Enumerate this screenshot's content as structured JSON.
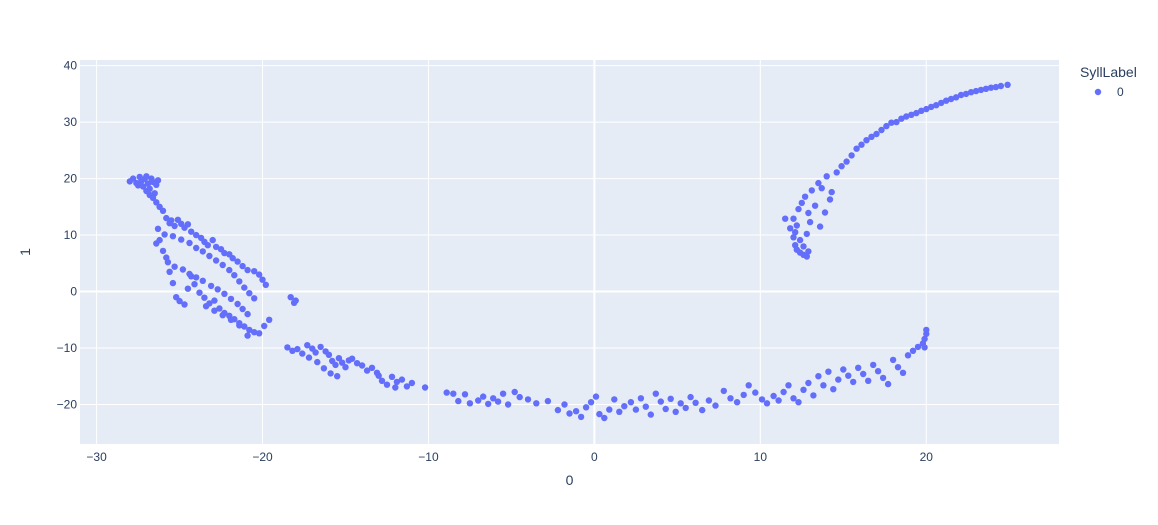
{
  "chart_data": {
    "type": "scatter",
    "xlabel": "0",
    "ylabel": "1",
    "xlim": [
      -31,
      28
    ],
    "ylim": [
      -27,
      41
    ],
    "xticks": [
      -30,
      -20,
      -10,
      0,
      10,
      20
    ],
    "yticks": [
      -20,
      -10,
      0,
      10,
      20,
      30,
      40
    ],
    "grid": true,
    "legend_position": "top-right",
    "legend_title": "SyllLabel",
    "background_color": "#e5ecf6",
    "grid_color": "#ffffff",
    "series": [
      {
        "name": "0",
        "color": "#636efa",
        "points": [
          [
            -28.0,
            19.5
          ],
          [
            -27.8,
            20.0
          ],
          [
            -27.6,
            19.2
          ],
          [
            -27.5,
            18.8
          ],
          [
            -27.4,
            20.3
          ],
          [
            -27.3,
            19.6
          ],
          [
            -27.2,
            18.6
          ],
          [
            -27.1,
            19.9
          ],
          [
            -27.0,
            20.4
          ],
          [
            -26.9,
            19.1
          ],
          [
            -26.8,
            18.2
          ],
          [
            -26.7,
            20.0
          ],
          [
            -26.6,
            19.4
          ],
          [
            -26.5,
            17.4
          ],
          [
            -26.4,
            18.9
          ],
          [
            -26.3,
            19.7
          ],
          [
            -26.8,
            17.1
          ],
          [
            -27.0,
            17.8
          ],
          [
            -26.6,
            16.6
          ],
          [
            -26.4,
            15.8
          ],
          [
            -26.2,
            15.0
          ],
          [
            -26.0,
            14.3
          ],
          [
            -26.3,
            11.1
          ],
          [
            -25.8,
            13.0
          ],
          [
            -25.6,
            12.1
          ],
          [
            -25.5,
            12.6
          ],
          [
            -25.3,
            11.6
          ],
          [
            -25.1,
            12.7
          ],
          [
            -24.9,
            12.0
          ],
          [
            -24.7,
            11.3
          ],
          [
            -24.5,
            11.9
          ],
          [
            -24.3,
            10.6
          ],
          [
            -24.0,
            10.0
          ],
          [
            -23.7,
            9.5
          ],
          [
            -23.5,
            8.8
          ],
          [
            -23.3,
            8.2
          ],
          [
            -23.0,
            9.1
          ],
          [
            -22.8,
            7.9
          ],
          [
            -22.5,
            7.5
          ],
          [
            -22.3,
            6.8
          ],
          [
            -22.0,
            6.6
          ],
          [
            -21.8,
            5.9
          ],
          [
            -21.5,
            5.3
          ],
          [
            -21.2,
            4.5
          ],
          [
            -20.9,
            3.8
          ],
          [
            -20.5,
            3.6
          ],
          [
            -20.2,
            3.0
          ],
          [
            -20.0,
            2.1
          ],
          [
            -19.8,
            1.2
          ],
          [
            -26.4,
            8.5
          ],
          [
            -26.2,
            9.1
          ],
          [
            -26.0,
            7.2
          ],
          [
            -25.8,
            6.0
          ],
          [
            -25.6,
            3.5
          ],
          [
            -25.4,
            1.5
          ],
          [
            -25.2,
            -1.0
          ],
          [
            -25.0,
            -1.7
          ],
          [
            -24.7,
            -2.3
          ],
          [
            -24.5,
            0.5
          ],
          [
            -24.3,
            2.7
          ],
          [
            -24.1,
            1.3
          ],
          [
            -23.8,
            -0.2
          ],
          [
            -23.5,
            -1.1
          ],
          [
            -23.2,
            -2.1
          ],
          [
            -22.9,
            -1.6
          ],
          [
            -22.6,
            -3.0
          ],
          [
            -22.3,
            -3.8
          ],
          [
            -22.0,
            -4.3
          ],
          [
            -21.7,
            -4.9
          ],
          [
            -21.4,
            -5.6
          ],
          [
            -21.1,
            -6.2
          ],
          [
            -20.8,
            -6.8
          ],
          [
            -20.5,
            -7.2
          ],
          [
            -20.2,
            -7.4
          ],
          [
            -19.9,
            -6.1
          ],
          [
            -19.6,
            -5.0
          ],
          [
            -25.9,
            10.1
          ],
          [
            -25.4,
            9.8
          ],
          [
            -24.9,
            9.2
          ],
          [
            -24.4,
            8.6
          ],
          [
            -24.0,
            7.7
          ],
          [
            -23.6,
            7.1
          ],
          [
            -23.2,
            6.3
          ],
          [
            -22.8,
            5.5
          ],
          [
            -22.4,
            4.7
          ],
          [
            -22.0,
            3.8
          ],
          [
            -21.7,
            2.9
          ],
          [
            -21.4,
            1.8
          ],
          [
            -21.1,
            0.7
          ],
          [
            -20.8,
            -0.3
          ],
          [
            -20.5,
            -1.2
          ],
          [
            -25.7,
            5.2
          ],
          [
            -25.3,
            4.4
          ],
          [
            -24.8,
            3.9
          ],
          [
            -24.4,
            3.1
          ],
          [
            -24.0,
            2.5
          ],
          [
            -23.6,
            1.9
          ],
          [
            -23.1,
            1.0
          ],
          [
            -22.7,
            0.4
          ],
          [
            -22.3,
            -0.4
          ],
          [
            -21.9,
            -1.3
          ],
          [
            -21.5,
            -2.2
          ],
          [
            -21.2,
            -3.1
          ],
          [
            -20.9,
            -4.0
          ],
          [
            -23.4,
            -2.6
          ],
          [
            -22.9,
            -3.4
          ],
          [
            -22.4,
            -4.2
          ],
          [
            -21.9,
            -5.0
          ],
          [
            -21.4,
            -6.0
          ],
          [
            -20.9,
            -7.8
          ],
          [
            -18.3,
            -1.0
          ],
          [
            -18.1,
            -2.0
          ],
          [
            -18.0,
            -1.6
          ],
          [
            -18.5,
            -9.9
          ],
          [
            -18.2,
            -10.5
          ],
          [
            -17.9,
            -10.2
          ],
          [
            -17.6,
            -11.0
          ],
          [
            -17.3,
            -9.5
          ],
          [
            -17.0,
            -10.1
          ],
          [
            -16.8,
            -10.8
          ],
          [
            -16.5,
            -9.8
          ],
          [
            -16.2,
            -10.6
          ],
          [
            -16.0,
            -11.2
          ],
          [
            -15.8,
            -12.3
          ],
          [
            -15.6,
            -13.0
          ],
          [
            -15.4,
            -11.8
          ],
          [
            -15.2,
            -12.6
          ],
          [
            -15.0,
            -13.4
          ],
          [
            -14.8,
            -12.2
          ],
          [
            -14.6,
            -11.9
          ],
          [
            -14.3,
            -12.7
          ],
          [
            -14.0,
            -13.1
          ],
          [
            -13.7,
            -14.0
          ],
          [
            -13.4,
            -13.5
          ],
          [
            -13.1,
            -14.4
          ],
          [
            -12.8,
            -15.8
          ],
          [
            -12.5,
            -16.5
          ],
          [
            -12.2,
            -15.1
          ],
          [
            -11.9,
            -16.0
          ],
          [
            -11.6,
            -15.6
          ],
          [
            -11.3,
            -16.8
          ],
          [
            -11.0,
            -16.2
          ],
          [
            -17.2,
            -11.7
          ],
          [
            -16.7,
            -12.5
          ],
          [
            -16.3,
            -13.6
          ],
          [
            -15.9,
            -14.5
          ],
          [
            -15.5,
            -15.0
          ],
          [
            -13.0,
            -14.9
          ],
          [
            -12.0,
            -17.0
          ],
          [
            -10.2,
            -17.0
          ],
          [
            -8.9,
            -17.9
          ],
          [
            -8.5,
            -18.1
          ],
          [
            -8.2,
            -19.4
          ],
          [
            -7.8,
            -18.2
          ],
          [
            -7.5,
            -19.8
          ],
          [
            -7.0,
            -19.3
          ],
          [
            -6.7,
            -18.6
          ],
          [
            -6.4,
            -19.9
          ],
          [
            -6.1,
            -18.9
          ],
          [
            -5.8,
            -19.5
          ],
          [
            -5.5,
            -18.1
          ],
          [
            -5.2,
            -20.0
          ],
          [
            -4.8,
            -17.8
          ],
          [
            -4.5,
            -18.7
          ],
          [
            -4.0,
            -19.1
          ],
          [
            -3.5,
            -19.8
          ],
          [
            -2.8,
            -19.4
          ],
          [
            -2.2,
            -21.0
          ],
          [
            -1.8,
            -20.0
          ],
          [
            -1.5,
            -21.6
          ],
          [
            -1.1,
            -21.2
          ],
          [
            -0.8,
            -22.2
          ],
          [
            -0.5,
            -20.5
          ],
          [
            -0.2,
            -19.6
          ],
          [
            0.1,
            -18.6
          ],
          [
            0.3,
            -21.7
          ],
          [
            0.6,
            -22.4
          ],
          [
            0.9,
            -20.9
          ],
          [
            1.2,
            -19.1
          ],
          [
            1.5,
            -21.3
          ],
          [
            1.8,
            -20.3
          ],
          [
            2.2,
            -19.6
          ],
          [
            2.5,
            -20.9
          ],
          [
            2.8,
            -18.9
          ],
          [
            3.1,
            -20.4
          ],
          [
            3.4,
            -21.8
          ],
          [
            3.7,
            -18.1
          ],
          [
            4.0,
            -19.5
          ],
          [
            4.3,
            -20.8
          ],
          [
            4.6,
            -19.0
          ],
          [
            4.9,
            -21.3
          ],
          [
            5.2,
            -19.8
          ],
          [
            5.5,
            -20.6
          ],
          [
            5.8,
            -18.7
          ],
          [
            6.1,
            -19.7
          ],
          [
            6.5,
            -21.0
          ],
          [
            6.9,
            -19.3
          ],
          [
            7.3,
            -20.2
          ],
          [
            7.8,
            -17.6
          ],
          [
            8.2,
            -18.9
          ],
          [
            8.6,
            -19.6
          ],
          [
            9.0,
            -18.3
          ],
          [
            9.3,
            -16.6
          ],
          [
            9.7,
            -17.9
          ],
          [
            10.1,
            -19.1
          ],
          [
            10.4,
            -19.8
          ],
          [
            10.8,
            -18.5
          ],
          [
            11.1,
            -19.3
          ],
          [
            11.4,
            -17.8
          ],
          [
            11.7,
            -16.6
          ],
          [
            12.0,
            -18.9
          ],
          [
            12.3,
            -19.6
          ],
          [
            12.6,
            -17.4
          ],
          [
            12.9,
            -16.2
          ],
          [
            13.2,
            -18.4
          ],
          [
            13.5,
            -15.0
          ],
          [
            13.8,
            -16.6
          ],
          [
            14.1,
            -14.2
          ],
          [
            14.4,
            -17.3
          ],
          [
            14.7,
            -15.6
          ],
          [
            15.0,
            -13.8
          ],
          [
            15.3,
            -14.9
          ],
          [
            15.6,
            -16.0
          ],
          [
            15.9,
            -13.5
          ],
          [
            16.2,
            -14.6
          ],
          [
            16.5,
            -15.8
          ],
          [
            16.8,
            -13.0
          ],
          [
            17.1,
            -14.1
          ],
          [
            17.4,
            -15.3
          ],
          [
            17.7,
            -16.4
          ],
          [
            18.0,
            -12.1
          ],
          [
            18.3,
            -13.4
          ],
          [
            18.6,
            -14.4
          ],
          [
            18.9,
            -11.3
          ],
          [
            19.2,
            -10.5
          ],
          [
            19.5,
            -9.8
          ],
          [
            19.8,
            -9.2
          ],
          [
            19.9,
            -8.4
          ],
          [
            20.0,
            -7.5
          ],
          [
            20.0,
            -6.8
          ],
          [
            19.9,
            -9.9
          ],
          [
            11.5,
            12.9
          ],
          [
            11.8,
            11.2
          ],
          [
            12.0,
            9.6
          ],
          [
            12.1,
            8.2
          ],
          [
            12.2,
            7.4
          ],
          [
            12.4,
            6.9
          ],
          [
            12.6,
            6.5
          ],
          [
            12.8,
            6.2
          ],
          [
            12.9,
            7.1
          ],
          [
            12.3,
            14.6
          ],
          [
            12.5,
            15.7
          ],
          [
            12.7,
            16.8
          ],
          [
            12.9,
            13.9
          ],
          [
            13.0,
            12.3
          ],
          [
            13.1,
            17.9
          ],
          [
            13.3,
            15.2
          ],
          [
            13.5,
            19.2
          ],
          [
            13.7,
            18.3
          ],
          [
            14.0,
            20.4
          ],
          [
            14.3,
            17.6
          ],
          [
            14.6,
            21.1
          ],
          [
            14.9,
            22.2
          ],
          [
            15.2,
            23.0
          ],
          [
            15.5,
            24.1
          ],
          [
            15.8,
            25.3
          ],
          [
            16.1,
            26.0
          ],
          [
            16.4,
            26.8
          ],
          [
            16.7,
            27.4
          ],
          [
            17.0,
            27.9
          ],
          [
            17.3,
            28.6
          ],
          [
            17.6,
            29.3
          ],
          [
            17.9,
            29.9
          ],
          [
            18.2,
            30.0
          ],
          [
            18.5,
            30.6
          ],
          [
            18.8,
            31.0
          ],
          [
            19.1,
            31.3
          ],
          [
            19.4,
            31.6
          ],
          [
            19.7,
            32.0
          ],
          [
            20.0,
            32.3
          ],
          [
            20.3,
            32.7
          ],
          [
            20.6,
            33.0
          ],
          [
            20.9,
            33.4
          ],
          [
            21.2,
            33.8
          ],
          [
            21.5,
            34.1
          ],
          [
            21.8,
            34.4
          ],
          [
            22.1,
            34.8
          ],
          [
            22.4,
            35.0
          ],
          [
            22.7,
            35.3
          ],
          [
            23.0,
            35.5
          ],
          [
            23.3,
            35.7
          ],
          [
            23.6,
            35.9
          ],
          [
            23.9,
            36.1
          ],
          [
            24.2,
            36.2
          ],
          [
            24.5,
            36.4
          ],
          [
            24.9,
            36.6
          ],
          [
            12.1,
            10.5
          ],
          [
            12.4,
            9.1
          ],
          [
            12.6,
            8.0
          ],
          [
            12.2,
            11.7
          ],
          [
            12.0,
            12.9
          ],
          [
            13.6,
            11.5
          ],
          [
            13.9,
            14.0
          ],
          [
            12.8,
            10.2
          ],
          [
            14.2,
            16.3
          ]
        ]
      }
    ]
  }
}
